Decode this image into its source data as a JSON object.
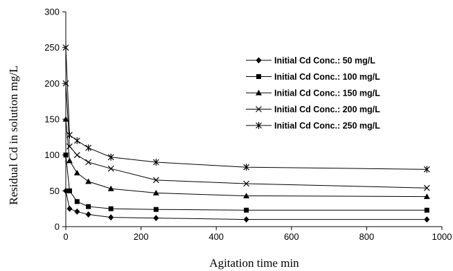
{
  "chart_data": {
    "type": "line",
    "xlabel": "Agitation time min",
    "ylabel": "Residual Cd in solution mg/L",
    "xlim": [
      0,
      1000
    ],
    "ylim": [
      0,
      300
    ],
    "xticks": [
      0,
      200,
      400,
      600,
      800,
      1000
    ],
    "yticks": [
      0,
      50,
      100,
      150,
      200,
      250,
      300
    ],
    "grid": false,
    "legend_position": "right",
    "colors": {
      "line": "#000000"
    },
    "series": [
      {
        "name": "Initial Cd Conc.: 50 mg/L",
        "marker": "diamond",
        "x": [
          0,
          10,
          30,
          60,
          120,
          240,
          480,
          960
        ],
        "y": [
          50,
          25,
          21,
          17,
          13,
          12,
          10,
          10
        ]
      },
      {
        "name": "Initial Cd Conc.: 100 mg/L",
        "marker": "square",
        "x": [
          0,
          10,
          30,
          60,
          120,
          240,
          480,
          960
        ],
        "y": [
          100,
          50,
          35,
          28,
          25,
          24,
          23,
          23
        ]
      },
      {
        "name": "Initial Cd Conc.: 150 mg/L",
        "marker": "triangle",
        "x": [
          0,
          10,
          30,
          60,
          120,
          240,
          480,
          960
        ],
        "y": [
          150,
          92,
          75,
          63,
          53,
          47,
          43,
          42
        ]
      },
      {
        "name": "Initial Cd Conc.: 200 mg/L",
        "marker": "x",
        "x": [
          0,
          10,
          30,
          60,
          120,
          240,
          480,
          960
        ],
        "y": [
          200,
          112,
          100,
          90,
          81,
          65,
          60,
          54
        ]
      },
      {
        "name": "Initial Cd Conc.: 250 mg/L",
        "marker": "star",
        "x": [
          0,
          10,
          30,
          60,
          120,
          240,
          480,
          960
        ],
        "y": [
          250,
          128,
          120,
          110,
          97,
          90,
          83,
          80
        ]
      }
    ]
  }
}
